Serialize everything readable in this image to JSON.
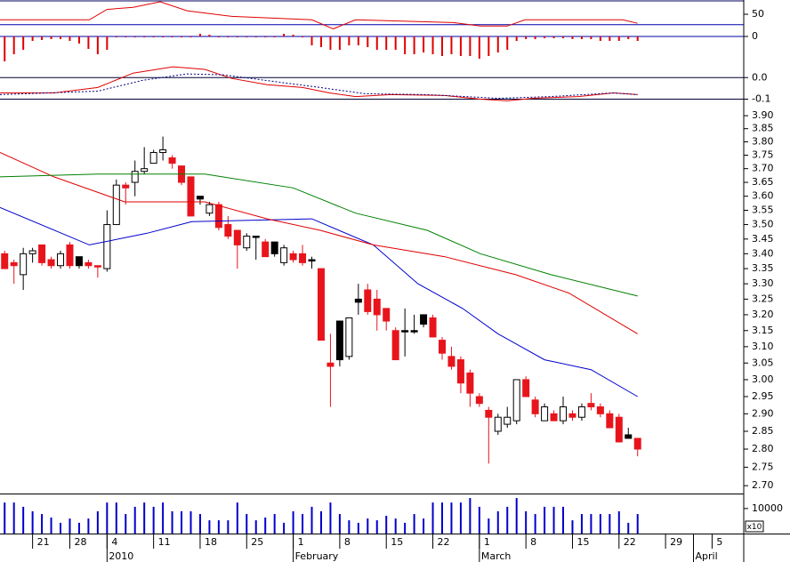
{
  "chart_data": [
    {
      "type": "candlestick",
      "log_scale": true,
      "xlim": [
        -0.5,
        79.4
      ],
      "ylim": [
        2.679,
        3.935
      ],
      "yticks": [
        {
          "value": 3.9,
          "label": "3.90"
        },
        3.85,
        {
          "value": 3.8,
          "label": "3.80"
        },
        3.75,
        {
          "value": 3.7,
          "label": "3.70"
        },
        3.65,
        {
          "value": 3.6,
          "label": "3.60"
        },
        3.55,
        {
          "value": 3.5,
          "label": "3.50"
        },
        3.45,
        {
          "value": 3.4,
          "label": "3.40"
        },
        3.35,
        {
          "value": 3.3,
          "label": "3.30"
        },
        3.25,
        {
          "value": 3.2,
          "label": "3.20"
        },
        3.15,
        {
          "value": 3.1,
          "label": "3.10"
        },
        3.05,
        {
          "value": 3,
          "label": "3.00"
        },
        2.95,
        {
          "value": 2.9,
          "label": "2.90"
        },
        2.85,
        {
          "value": 2.8,
          "label": "2.80"
        },
        2.75,
        {
          "value": 2.7,
          "label": "2.70"
        }
      ],
      "xticks": [
        {
          "value": 3,
          "label": "21"
        },
        {
          "value": 7,
          "label": "28"
        },
        {
          "value": 11,
          "label": "4"
        },
        {
          "value": 16,
          "label": "11"
        },
        {
          "value": 21,
          "label": "18"
        },
        {
          "value": 26,
          "label": "25"
        },
        {
          "value": 31,
          "label": "1"
        },
        {
          "value": 36,
          "label": "8"
        },
        {
          "value": 41,
          "label": "15"
        },
        {
          "value": 46,
          "label": "22"
        },
        {
          "value": 51,
          "label": "1"
        },
        {
          "value": 56,
          "label": "8"
        },
        {
          "value": 61,
          "label": "15"
        },
        {
          "value": 66,
          "label": "22"
        },
        {
          "value": 71,
          "label": "29"
        },
        {
          "value": 76,
          "label": "5"
        }
      ],
      "month_ticks": [
        {
          "value": 11,
          "label": "2010"
        },
        {
          "value": 31,
          "label": "February"
        },
        {
          "value": 51,
          "label": "March"
        },
        {
          "value": 74,
          "label": "April"
        }
      ],
      "candles": {
        "open": [
          3.4,
          3.37,
          3.33,
          3.4,
          3.43,
          3.38,
          3.36,
          3.43,
          3.39,
          3.37,
          3.36,
          3.35,
          3.5,
          3.64,
          3.65,
          3.69,
          3.72,
          3.76,
          3.74,
          3.71,
          3.67,
          3.6,
          3.54,
          3.57,
          3.5,
          3.48,
          3.42,
          3.46,
          3.44,
          3.44,
          3.37,
          3.4,
          3.4,
          3.38,
          3.35,
          3.05,
          3.18,
          3.07,
          3.25,
          3.28,
          3.25,
          3.22,
          3.15,
          3.15,
          3.15,
          3.2,
          3.19,
          3.12,
          3.07,
          3.06,
          3.02,
          2.95,
          2.91,
          2.85,
          2.87,
          2.88,
          3.0,
          2.94,
          2.88,
          2.9,
          2.88,
          2.9,
          2.89,
          2.93,
          2.92,
          2.9,
          2.89,
          2.84,
          2.83
        ],
        "high": [
          3.41,
          3.38,
          3.42,
          3.42,
          3.43,
          3.39,
          3.41,
          3.44,
          3.39,
          3.38,
          3.36,
          3.55,
          3.66,
          3.65,
          3.73,
          3.78,
          3.77,
          3.82,
          3.75,
          3.71,
          3.67,
          3.6,
          3.58,
          3.58,
          3.53,
          3.48,
          3.47,
          3.46,
          3.45,
          3.44,
          3.43,
          3.41,
          3.43,
          3.39,
          3.35,
          3.14,
          3.18,
          3.19,
          3.3,
          3.3,
          3.28,
          3.22,
          3.16,
          3.22,
          3.2,
          3.2,
          3.2,
          3.13,
          3.1,
          3.07,
          3.03,
          2.96,
          2.92,
          2.9,
          2.92,
          3.0,
          3.01,
          2.95,
          2.93,
          2.91,
          2.95,
          2.91,
          2.93,
          2.96,
          2.93,
          2.91,
          2.9,
          2.86,
          2.83
        ],
        "low": [
          3.35,
          3.3,
          3.28,
          3.37,
          3.36,
          3.35,
          3.35,
          3.35,
          3.35,
          3.35,
          3.32,
          3.34,
          3.5,
          3.57,
          3.6,
          3.68,
          3.72,
          3.73,
          3.7,
          3.64,
          3.53,
          3.57,
          3.53,
          3.48,
          3.45,
          3.35,
          3.41,
          3.38,
          3.39,
          3.39,
          3.36,
          3.37,
          3.36,
          3.35,
          3.12,
          2.92,
          3.04,
          3.06,
          3.2,
          3.2,
          3.15,
          3.15,
          3.06,
          3.07,
          3.14,
          3.16,
          3.13,
          3.06,
          3.03,
          2.96,
          2.92,
          2.92,
          2.76,
          2.84,
          2.86,
          2.87,
          2.95,
          2.89,
          2.88,
          2.88,
          2.87,
          2.88,
          2.88,
          2.91,
          2.89,
          2.86,
          2.82,
          2.83,
          2.78
        ],
        "close": [
          3.35,
          3.36,
          3.4,
          3.41,
          3.37,
          3.36,
          3.4,
          3.36,
          3.36,
          3.36,
          3.36,
          3.5,
          3.64,
          3.63,
          3.69,
          3.7,
          3.76,
          3.77,
          3.72,
          3.65,
          3.53,
          3.59,
          3.57,
          3.49,
          3.46,
          3.43,
          3.46,
          3.46,
          3.39,
          3.4,
          3.42,
          3.38,
          3.37,
          3.38,
          3.12,
          3.04,
          3.06,
          3.19,
          3.24,
          3.21,
          3.2,
          3.18,
          3.06,
          3.15,
          3.15,
          3.17,
          3.13,
          3.08,
          3.04,
          2.99,
          2.96,
          2.93,
          2.89,
          2.89,
          2.89,
          3.0,
          2.95,
          2.9,
          2.92,
          2.88,
          2.92,
          2.89,
          2.92,
          2.92,
          2.9,
          2.86,
          2.82,
          2.83,
          2.8
        ],
        "colors": [
          "#e8141c",
          "#e8141c",
          "#ffffff",
          "#ffffff",
          "#e8141c",
          "#e8141c",
          "#ffffff",
          "#e8141c",
          "#000000",
          "#e8141c",
          "#e8141c",
          "#ffffff",
          "#ffffff",
          "#e8141c",
          "#ffffff",
          "#ffffff",
          "#ffffff",
          "#ffffff",
          "#e8141c",
          "#e8141c",
          "#e8141c",
          "#000000",
          "#ffffff",
          "#e8141c",
          "#e8141c",
          "#e8141c",
          "#ffffff",
          "#000000",
          "#e8141c",
          "#000000",
          "#ffffff",
          "#e8141c",
          "#e8141c",
          "#000000",
          "#e8141c",
          "#e8141c",
          "#000000",
          "#ffffff",
          "#000000",
          "#e8141c",
          "#e8141c",
          "#e8141c",
          "#e8141c",
          "#000000",
          "#000000",
          "#000000",
          "#e8141c",
          "#e8141c",
          "#e8141c",
          "#e8141c",
          "#e8141c",
          "#e8141c",
          "#e8141c",
          "#ffffff",
          "#ffffff",
          "#ffffff",
          "#e8141c",
          "#e8141c",
          "#ffffff",
          "#e8141c",
          "#ffffff",
          "#e8141c",
          "#ffffff",
          "#e8141c",
          "#e8141c",
          "#e8141c",
          "#e8141c",
          "#000000",
          "#e8141c"
        ]
      },
      "series": [
        {
          "color": "#0000cc",
          "x": [
            -0.5,
            9.1,
            15.3,
            20.1,
            33,
            39.6,
            44.4,
            49.2,
            53,
            58,
            63,
            68
          ],
          "values": [
            3.56,
            3.43,
            3.47,
            3.51,
            3.52,
            3.43,
            3.3,
            3.22,
            3.14,
            3.06,
            3.03,
            2.95
          ]
        },
        {
          "color": "#e00000",
          "x": [
            -0.5,
            5.3,
            12.9,
            21.5,
            28.2,
            33.9,
            39.6,
            47.3,
            54.9,
            60.6,
            68
          ],
          "values": [
            3.76,
            3.67,
            3.58,
            3.58,
            3.52,
            3.48,
            3.43,
            3.39,
            3.33,
            3.27,
            3.14
          ]
        },
        {
          "color": "#008000",
          "x": [
            -0.5,
            10,
            21.5,
            31,
            37.7,
            45.4,
            51.1,
            58.7,
            68
          ],
          "values": [
            3.67,
            3.68,
            3.68,
            3.63,
            3.54,
            3.48,
            3.4,
            3.33,
            3.26
          ]
        }
      ]
    },
    {
      "type": "line",
      "ylim": [
        18,
        68
      ],
      "yticks": [
        50
      ],
      "ref_lines": [
        35
      ],
      "ref_color": "#0000aa",
      "series": [
        {
          "color": "#e00000",
          "x": [
            -0.5,
            9.1,
            11,
            13.8,
            16.7,
            19.6,
            24.4,
            33,
            35.3,
            37.7,
            48.2,
            51.1,
            54,
            55.9,
            66.4,
            68
          ],
          "values": [
            42,
            42,
            57,
            60,
            68,
            55,
            47,
            42,
            29,
            42,
            38,
            33,
            33,
            42,
            42,
            37
          ]
        }
      ]
    },
    {
      "type": "bar",
      "ylim": [
        -46,
        5
      ],
      "yticks": [
        0
      ],
      "grid": true,
      "grid_color": "#0000aa",
      "color": "#e00000",
      "values": [
        -28,
        -20,
        -15,
        -5,
        -4,
        -3,
        -3,
        -5,
        -8,
        -14,
        -20,
        -15,
        -1,
        -1,
        -1,
        -1,
        -1,
        -1,
        -1,
        -1,
        -1,
        3,
        2,
        -1,
        -1,
        -1,
        -1,
        -1,
        -1,
        -1,
        3,
        2,
        -1,
        -10,
        -12,
        -15,
        -15,
        -10,
        -10,
        -12,
        -15,
        -15,
        -15,
        -20,
        -20,
        -18,
        -20,
        -22,
        -20,
        -22,
        -22,
        -25,
        -22,
        -18,
        -15,
        -5,
        -3,
        -3,
        -2,
        -2,
        -2,
        -3,
        -3,
        -3,
        -5,
        -5,
        -5,
        -3,
        -5
      ]
    },
    {
      "type": "line",
      "ylim": [
        -0.1375,
        0.1
      ],
      "yticks": [
        {
          "value": 0,
          "label": "0.0"
        },
        -0.1
      ],
      "grid": true,
      "grid_color": "#000033",
      "series": [
        {
          "color": "#e00000",
          "x": [
            -0.5,
            5.3,
            10,
            13.8,
            18.1,
            21.5,
            24.4,
            28.2,
            32,
            34.9,
            37.7,
            41.5,
            47.3,
            51.1,
            54,
            56.8,
            61.6,
            65.4,
            68
          ],
          "values": [
            -0.071,
            -0.071,
            -0.046,
            0.021,
            0.05,
            0.038,
            -0.004,
            -0.033,
            -0.046,
            -0.071,
            -0.088,
            -0.079,
            -0.083,
            -0.1,
            -0.108,
            -0.096,
            -0.088,
            -0.071,
            -0.079
          ]
        },
        {
          "color": "#000080",
          "dashed": true,
          "x": [
            -0.5,
            10,
            14.8,
            19.6,
            23.4,
            27.2,
            33.9,
            38.7,
            45.4,
            53,
            58.7,
            65.4,
            68
          ],
          "values": [
            -0.079,
            -0.063,
            -0.013,
            0.017,
            0.013,
            -0.008,
            -0.046,
            -0.075,
            -0.079,
            -0.096,
            -0.088,
            -0.071,
            -0.079
          ]
        }
      ]
    },
    {
      "type": "bar",
      "ylim": [
        0,
        16000
      ],
      "yticks": [
        10000
      ],
      "color": "#0000cc",
      "unit": "x10",
      "values": [
        12400,
        12400,
        10700,
        8900,
        7800,
        6400,
        4300,
        6000,
        4300,
        6000,
        8900,
        12400,
        12400,
        7800,
        10700,
        12400,
        10700,
        12400,
        8900,
        8900,
        8900,
        7800,
        5300,
        5300,
        5300,
        12400,
        7800,
        5300,
        6400,
        7800,
        4300,
        8900,
        7800,
        10700,
        8900,
        12400,
        7800,
        5300,
        4300,
        6000,
        5300,
        7100,
        6000,
        4300,
        7800,
        6000,
        12400,
        12400,
        12400,
        12400,
        14200,
        10700,
        6000,
        8900,
        10700,
        14200,
        8900,
        7800,
        10700,
        10700,
        10700,
        5300,
        7800,
        7800,
        7800,
        7800,
        8900,
        4300,
        7800
      ]
    }
  ]
}
